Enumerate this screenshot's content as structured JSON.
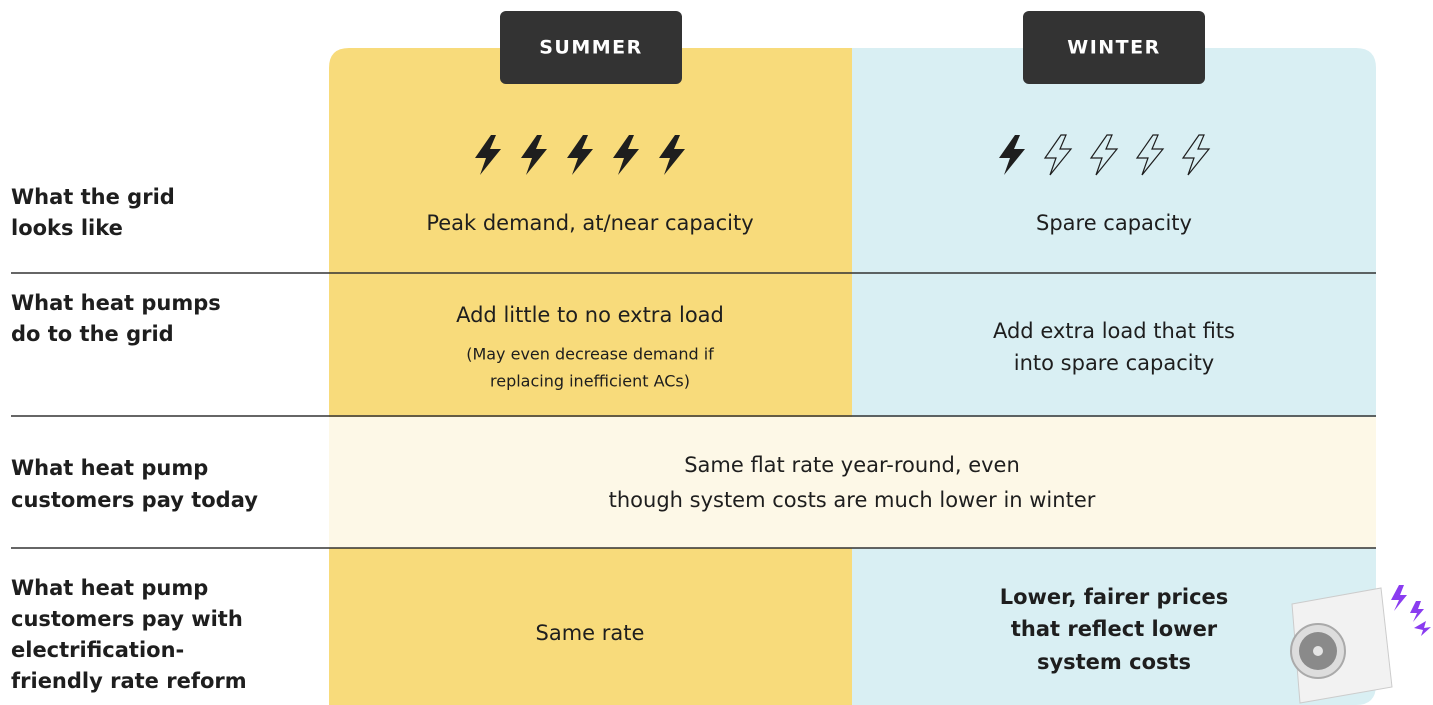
{
  "columns": [
    "SUMMER",
    "WINTER"
  ],
  "rows": [
    {
      "label": [
        "What the grid",
        "looks like"
      ],
      "summer": [
        "Peak demand, at/near capacity"
      ],
      "winter": [
        "Spare capacity"
      ]
    },
    {
      "label": [
        "What heat pumps",
        "do to the grid"
      ],
      "summer": [
        "Add little to no extra load"
      ],
      "summer_note": [
        "(May even decrease demand if",
        "replacing inefficient ACs)"
      ],
      "winter": [
        "Add extra load that fits",
        "into spare capacity"
      ]
    },
    {
      "label": [
        "What heat pump",
        "customers pay today"
      ],
      "both": [
        "Same flat rate year-round, even",
        "though system costs are much lower in winter"
      ]
    },
    {
      "label": [
        "What heat pump",
        "customers pay with",
        "electrification-",
        "friendly rate reform"
      ],
      "summer": [
        "Same rate"
      ],
      "winter": [
        "Lower, fairer prices",
        "that reflect lower",
        "system costs"
      ]
    }
  ]
}
